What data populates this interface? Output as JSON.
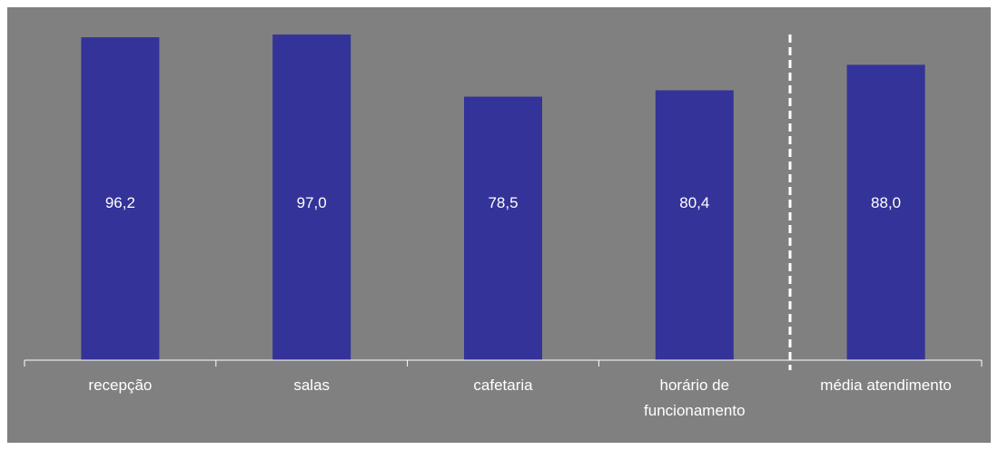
{
  "chart_data": {
    "type": "bar",
    "categories": [
      "recepção",
      "salas",
      "cafetaria",
      "horário de funcionamento",
      "média atendimento"
    ],
    "values": [
      96.2,
      97.0,
      78.5,
      80.4,
      88.0
    ],
    "value_labels": [
      "96,2",
      "97,0",
      "78,5",
      "80,4",
      "88,0"
    ],
    "ylim": [
      0,
      100
    ],
    "grid": false,
    "legend": "none",
    "separator": "dashed line before the last category"
  },
  "colors": {
    "plot_background": "#808080",
    "bar": "#333399",
    "text": "#ffffff",
    "axis": "#ffffff"
  }
}
